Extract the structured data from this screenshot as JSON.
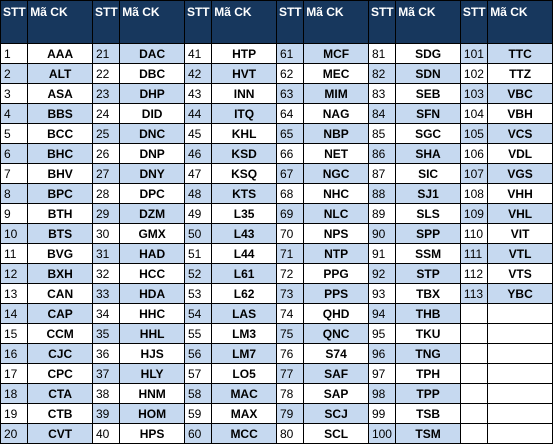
{
  "header": [
    "STT",
    "Mã CK"
  ],
  "groups": [
    [
      [
        1,
        "AAA"
      ],
      [
        2,
        "ALT"
      ],
      [
        3,
        "ASA"
      ],
      [
        4,
        "BBS"
      ],
      [
        5,
        "BCC"
      ],
      [
        6,
        "BHC"
      ],
      [
        7,
        "BHV"
      ],
      [
        8,
        "BPC"
      ],
      [
        9,
        "BTH"
      ],
      [
        10,
        "BTS"
      ],
      [
        11,
        "BVG"
      ],
      [
        12,
        "BXH"
      ],
      [
        13,
        "CAN"
      ],
      [
        14,
        "CAP"
      ],
      [
        15,
        "CCM"
      ],
      [
        16,
        "CJC"
      ],
      [
        17,
        "CPC"
      ],
      [
        18,
        "CTA"
      ],
      [
        19,
        "CTB"
      ],
      [
        20,
        "CVT"
      ]
    ],
    [
      [
        21,
        "DAC"
      ],
      [
        22,
        "DBC"
      ],
      [
        23,
        "DHP"
      ],
      [
        24,
        "DID"
      ],
      [
        25,
        "DNC"
      ],
      [
        26,
        "DNP"
      ],
      [
        27,
        "DNY"
      ],
      [
        28,
        "DPC"
      ],
      [
        29,
        "DZM"
      ],
      [
        30,
        "GMX"
      ],
      [
        31,
        "HAD"
      ],
      [
        32,
        "HCC"
      ],
      [
        33,
        "HDA"
      ],
      [
        34,
        "HHC"
      ],
      [
        35,
        "HHL"
      ],
      [
        36,
        "HJS"
      ],
      [
        37,
        "HLY"
      ],
      [
        38,
        "HNM"
      ],
      [
        39,
        "HOM"
      ],
      [
        40,
        "HPS"
      ]
    ],
    [
      [
        41,
        "HTP"
      ],
      [
        42,
        "HVT"
      ],
      [
        43,
        "INN"
      ],
      [
        44,
        "ITQ"
      ],
      [
        45,
        "KHL"
      ],
      [
        46,
        "KSD"
      ],
      [
        47,
        "KSQ"
      ],
      [
        48,
        "KTS"
      ],
      [
        49,
        "L35"
      ],
      [
        50,
        "L43"
      ],
      [
        51,
        "L44"
      ],
      [
        52,
        "L61"
      ],
      [
        53,
        "L62"
      ],
      [
        54,
        "LAS"
      ],
      [
        55,
        "LM3"
      ],
      [
        56,
        "LM7"
      ],
      [
        57,
        "LO5"
      ],
      [
        58,
        "MAC"
      ],
      [
        59,
        "MAX"
      ],
      [
        60,
        "MCC"
      ]
    ],
    [
      [
        61,
        "MCF"
      ],
      [
        62,
        "MEC"
      ],
      [
        63,
        "MIM"
      ],
      [
        64,
        "NAG"
      ],
      [
        65,
        "NBP"
      ],
      [
        66,
        "NET"
      ],
      [
        67,
        "NGC"
      ],
      [
        68,
        "NHC"
      ],
      [
        69,
        "NLC"
      ],
      [
        70,
        "NPS"
      ],
      [
        71,
        "NTP"
      ],
      [
        72,
        "PPG"
      ],
      [
        73,
        "PPS"
      ],
      [
        74,
        "QHD"
      ],
      [
        75,
        "QNC"
      ],
      [
        76,
        "S74"
      ],
      [
        77,
        "SAF"
      ],
      [
        78,
        "SAP"
      ],
      [
        79,
        "SCJ"
      ],
      [
        80,
        "SCL"
      ]
    ],
    [
      [
        81,
        "SDG"
      ],
      [
        82,
        "SDN"
      ],
      [
        83,
        "SEB"
      ],
      [
        84,
        "SFN"
      ],
      [
        85,
        "SGC"
      ],
      [
        86,
        "SHA"
      ],
      [
        87,
        "SIC"
      ],
      [
        88,
        "SJ1"
      ],
      [
        89,
        "SLS"
      ],
      [
        90,
        "SPP"
      ],
      [
        91,
        "SSM"
      ],
      [
        92,
        "STP"
      ],
      [
        93,
        "TBX"
      ],
      [
        94,
        "THB"
      ],
      [
        95,
        "TKU"
      ],
      [
        96,
        "TNG"
      ],
      [
        97,
        "TPH"
      ],
      [
        98,
        "TPP"
      ],
      [
        99,
        "TSB"
      ],
      [
        100,
        "TSM"
      ]
    ],
    [
      [
        101,
        "TTC"
      ],
      [
        102,
        "TTZ"
      ],
      [
        103,
        "VBC"
      ],
      [
        104,
        "VBH"
      ],
      [
        105,
        "VCS"
      ],
      [
        106,
        "VDL"
      ],
      [
        107,
        "VGS"
      ],
      [
        108,
        "VHH"
      ],
      [
        109,
        "VHL"
      ],
      [
        110,
        "VIT"
      ],
      [
        111,
        "VTL"
      ],
      [
        112,
        "VTS"
      ],
      [
        113,
        "YBC"
      ]
    ]
  ]
}
